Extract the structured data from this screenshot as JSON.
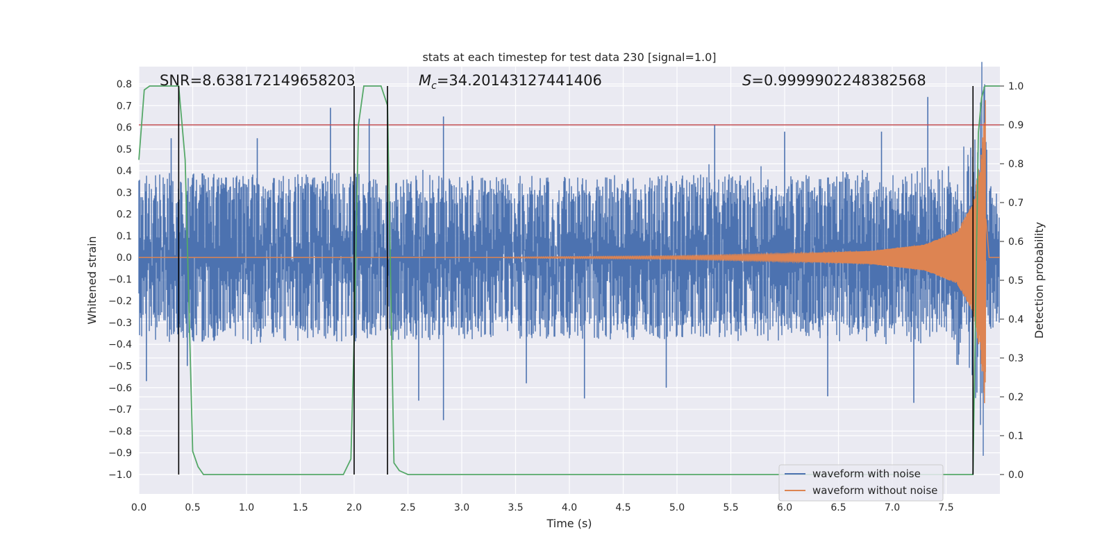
{
  "chart_data": {
    "type": "line",
    "title": "stats at each timestep for test data 230 [signal=1.0]",
    "xlabel": "Time (s)",
    "ylabel": "Whitened strain",
    "y2label": "Detection probability",
    "xlim": [
      0.0,
      8.0
    ],
    "ylim": [
      -1.09,
      0.88
    ],
    "y2lim": [
      -0.05,
      1.05
    ],
    "xticks": [
      "0.0",
      "0.5",
      "1.0",
      "1.5",
      "2.0",
      "2.5",
      "3.0",
      "3.5",
      "4.0",
      "4.5",
      "5.0",
      "5.5",
      "6.0",
      "6.5",
      "7.0",
      "7.5"
    ],
    "yticks": [
      "−1.0",
      "−0.9",
      "−0.8",
      "−0.7",
      "−0.6",
      "−0.5",
      "−0.4",
      "−0.3",
      "−0.2",
      "−0.1",
      "0.0",
      "0.1",
      "0.2",
      "0.3",
      "0.4",
      "0.5",
      "0.6",
      "0.7",
      "0.8"
    ],
    "y2ticks": [
      "0.0",
      "0.1",
      "0.2",
      "0.3",
      "0.4",
      "0.5",
      "0.6",
      "0.7",
      "0.8",
      "0.9",
      "1.0"
    ],
    "grid": true,
    "legend_position": "bottom-right",
    "annotations": {
      "snr": "SNR=8.638172149658203",
      "mc_symbol": "M",
      "mc_sub": "c",
      "mc_value": "=34.20143127441406",
      "s_symbol": "S",
      "s_value": "=0.9999902248382568"
    },
    "threshold_y2": 0.9,
    "vertical_lines_x": [
      0.37,
      2.0,
      2.31,
      7.75
    ],
    "noise_envelope": {
      "t": [
        0.0,
        1.0,
        2.0,
        3.0,
        4.0,
        5.0,
        6.0,
        7.0,
        7.5,
        7.75,
        7.85,
        7.9,
        8.0
      ],
      "amplitude": [
        0.28,
        0.28,
        0.28,
        0.27,
        0.27,
        0.27,
        0.27,
        0.27,
        0.27,
        0.28,
        0.3,
        0.25,
        0.22
      ]
    },
    "noise_spikes": [
      {
        "t": 0.3,
        "y": 0.55
      },
      {
        "t": 0.45,
        "y": -0.5
      },
      {
        "t": 0.07,
        "y": -0.57
      },
      {
        "t": 1.78,
        "y": 0.69
      },
      {
        "t": 2.14,
        "y": 0.64
      },
      {
        "t": 2.83,
        "y": 0.65
      },
      {
        "t": 2.83,
        "y": -0.75
      },
      {
        "t": 2.6,
        "y": -0.66
      },
      {
        "t": 4.14,
        "y": -0.65
      },
      {
        "t": 5.35,
        "y": 0.61
      },
      {
        "t": 6.4,
        "y": -0.64
      },
      {
        "t": 7.2,
        "y": -0.67
      },
      {
        "t": 7.33,
        "y": 0.74
      },
      {
        "t": 6.0,
        "y": 0.58
      },
      {
        "t": 3.6,
        "y": -0.58
      },
      {
        "t": 1.1,
        "y": 0.55
      },
      {
        "t": 4.9,
        "y": -0.6
      },
      {
        "t": 6.9,
        "y": 0.58
      }
    ],
    "chirp": {
      "t_start": 3.4,
      "t_merge": 7.87,
      "amp_at": [
        [
          3.4,
          0.002
        ],
        [
          5.0,
          0.008
        ],
        [
          6.0,
          0.018
        ],
        [
          6.8,
          0.03
        ],
        [
          7.3,
          0.06
        ],
        [
          7.6,
          0.12
        ],
        [
          7.75,
          0.25
        ],
        [
          7.83,
          0.5
        ],
        [
          7.87,
          0.76
        ]
      ]
    },
    "detection_probability": {
      "t": [
        0.0,
        0.05,
        0.1,
        0.2,
        0.3,
        0.37,
        0.43,
        0.5,
        0.55,
        0.6,
        0.7,
        1.0,
        1.3,
        1.5,
        1.9,
        1.97,
        2.0,
        2.04,
        2.09,
        2.2,
        2.25,
        2.31,
        2.37,
        2.42,
        2.5,
        3.0,
        4.0,
        5.0,
        5.5,
        6.0,
        7.0,
        7.75,
        7.8,
        7.83,
        7.86,
        7.88,
        8.0
      ],
      "p": [
        0.81,
        0.99,
        1.0,
        1.0,
        1.0,
        1.0,
        0.81,
        0.06,
        0.02,
        0.0,
        0.0,
        0.0,
        0.0,
        0.0,
        0.0,
        0.04,
        0.35,
        0.9,
        1.0,
        1.0,
        1.0,
        0.95,
        0.03,
        0.01,
        0.0,
        0.0,
        0.0,
        0.0,
        0.0,
        0.0,
        0.0,
        0.0,
        0.88,
        0.97,
        1.0,
        1.0,
        1.0
      ]
    },
    "series": [
      {
        "name": "waveform with noise",
        "color": "#4c72b0"
      },
      {
        "name": "waveform without noise",
        "color": "#dd8452"
      }
    ],
    "probability_color": "#55a868",
    "threshold_color": "#c44e52"
  }
}
